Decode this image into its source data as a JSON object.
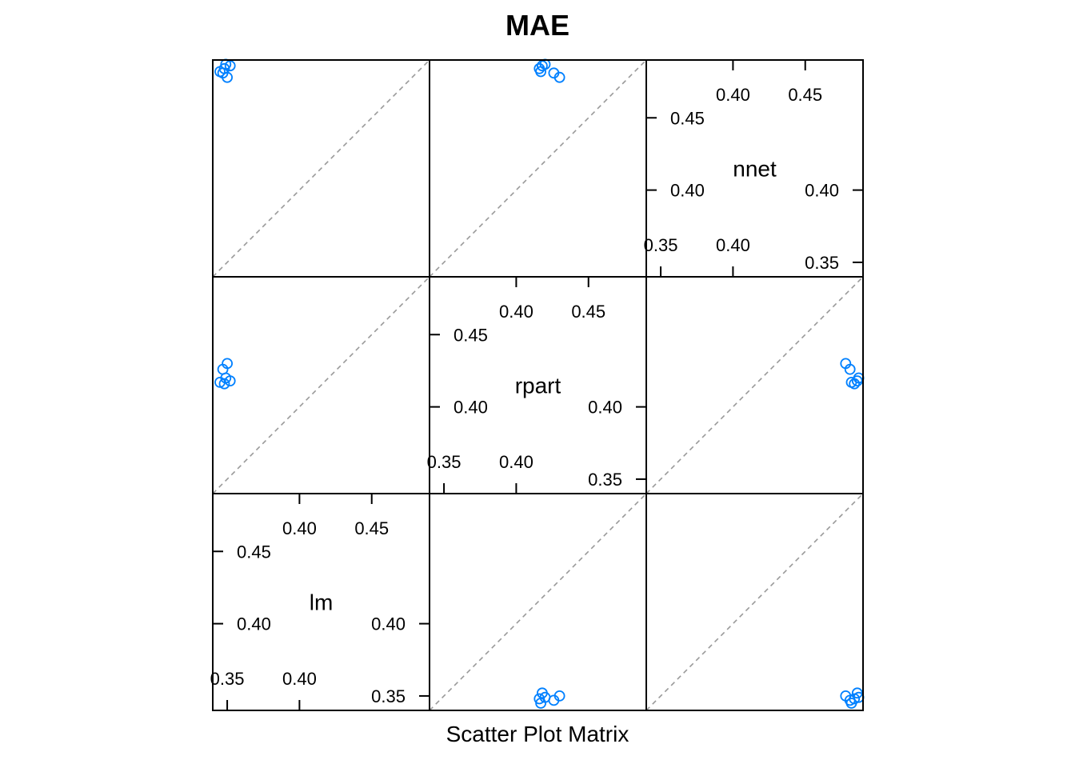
{
  "chart_data": {
    "type": "scatter",
    "subtype": "scatter-plot-matrix",
    "title": "MAE",
    "xlabel": "Scatter Plot Matrix",
    "variables": [
      "lm",
      "rpart",
      "nnet"
    ],
    "range": [
      0.34,
      0.49
    ],
    "grid": false,
    "point_color": "#0080ff",
    "reference_line": "diagonal-dashed",
    "reference_line_color": "#999999",
    "diagonal_ticks": {
      "lm": {
        "low": [
          "0.35",
          "0.40"
        ],
        "high": [
          "0.40",
          "0.45"
        ],
        "left": [
          "0.40",
          "0.45"
        ],
        "right": [
          "0.35",
          "0.40"
        ]
      },
      "rpart": {
        "low": [
          "0.35",
          "0.40"
        ],
        "high": [
          "0.40",
          "0.45"
        ],
        "left": [
          "0.40",
          "0.45"
        ],
        "right": [
          "0.35",
          "0.40"
        ]
      },
      "nnet": {
        "low": [
          "0.35",
          "0.40"
        ],
        "high": [
          "0.40",
          "0.45"
        ],
        "left": [
          "0.40",
          "0.45"
        ],
        "right": [
          "0.35",
          "0.40"
        ]
      }
    },
    "tick_values": {
      "low": [
        0.35,
        0.4
      ],
      "high": [
        0.4,
        0.45
      ]
    },
    "observations": {
      "lm": [
        0.345,
        0.352,
        0.348,
        0.35,
        0.347,
        0.349
      ],
      "rpart": [
        0.417,
        0.418,
        0.416,
        0.43,
        0.426,
        0.42
      ],
      "nnet": [
        0.482,
        0.486,
        0.484,
        0.478,
        0.481,
        0.487
      ]
    }
  }
}
